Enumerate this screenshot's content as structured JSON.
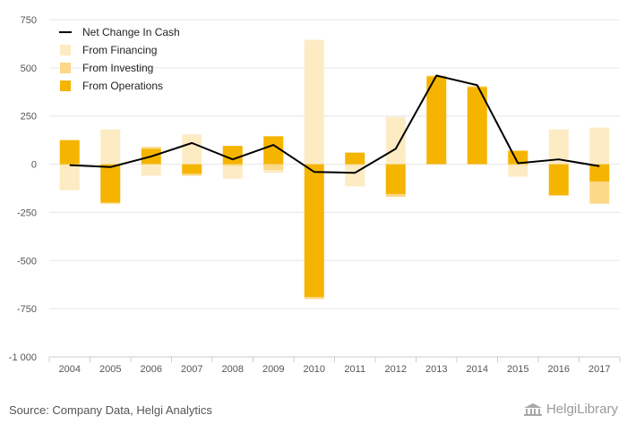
{
  "chart_data": {
    "type": "bar",
    "stacked": true,
    "categories": [
      "2004",
      "2005",
      "2006",
      "2007",
      "2008",
      "2009",
      "2010",
      "2011",
      "2012",
      "2013",
      "2014",
      "2015",
      "2016",
      "2017"
    ],
    "series": [
      {
        "name": "From Operations",
        "kind": "bar",
        "color": "#f5b400",
        "values": [
          125,
          -200,
          80,
          -50,
          95,
          145,
          -690,
          60,
          -155,
          455,
          400,
          70,
          -160,
          -90
        ]
      },
      {
        "name": "From Investing",
        "kind": "bar",
        "color": "#fcd889",
        "values": [
          -5,
          -5,
          10,
          -10,
          -10,
          -30,
          -10,
          -5,
          -15,
          5,
          5,
          -5,
          -5,
          -115
        ]
      },
      {
        "name": "From Financing",
        "kind": "bar",
        "color": "#fdebc3",
        "values": [
          -130,
          180,
          -60,
          155,
          -65,
          -15,
          645,
          -110,
          245,
          0,
          0,
          -60,
          180,
          190
        ]
      },
      {
        "name": "Net Change In Cash",
        "kind": "line",
        "color": "#000000",
        "values": [
          -5,
          -15,
          40,
          110,
          25,
          100,
          -40,
          -45,
          80,
          460,
          410,
          5,
          25,
          -10
        ]
      }
    ],
    "ylim": [
      -1000,
      750
    ],
    "yticks": [
      750,
      500,
      250,
      0,
      -250,
      -500,
      -750,
      -1000
    ],
    "ytick_labels": [
      "750",
      "500",
      "250",
      "0",
      "-250",
      "-500",
      "-750",
      "-1 000"
    ],
    "grid": true,
    "legend": "top-left",
    "legend_order": [
      "Net Change In Cash",
      "From Financing",
      "From Investing",
      "From Operations"
    ]
  },
  "footer": {
    "source": "Source: Company Data, Helgi Analytics",
    "brand": "HelgiLibrary"
  },
  "colors": {
    "gridline": "#e6e6e6",
    "axis": "#cccccc"
  },
  "icons": {
    "brand": "library-building-icon"
  }
}
